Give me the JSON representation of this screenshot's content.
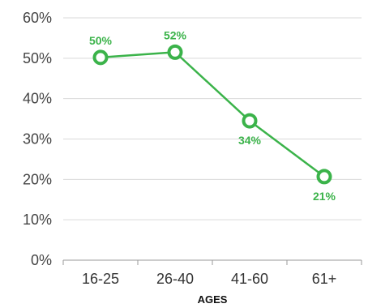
{
  "chart_data": {
    "type": "line",
    "categories": [
      "16-25",
      "26-40",
      "41-60",
      "61+"
    ],
    "values": [
      50.2,
      51.5,
      34.5,
      20.7
    ],
    "data_labels": [
      "50%",
      "52%",
      "34%",
      "21%"
    ],
    "xlabel": "AGES",
    "ylabel": "",
    "ylim": [
      0,
      60
    ],
    "y_ticks": [
      0,
      10,
      20,
      30,
      40,
      50,
      60
    ],
    "y_tick_labels": [
      "0%",
      "10%",
      "20%",
      "30%",
      "40%",
      "50%",
      "60%"
    ],
    "grid": true,
    "legend": "none",
    "series_color": "#3bb34a",
    "grid_color": "#d9d9d9",
    "axis_color": "#9a9a9a"
  }
}
